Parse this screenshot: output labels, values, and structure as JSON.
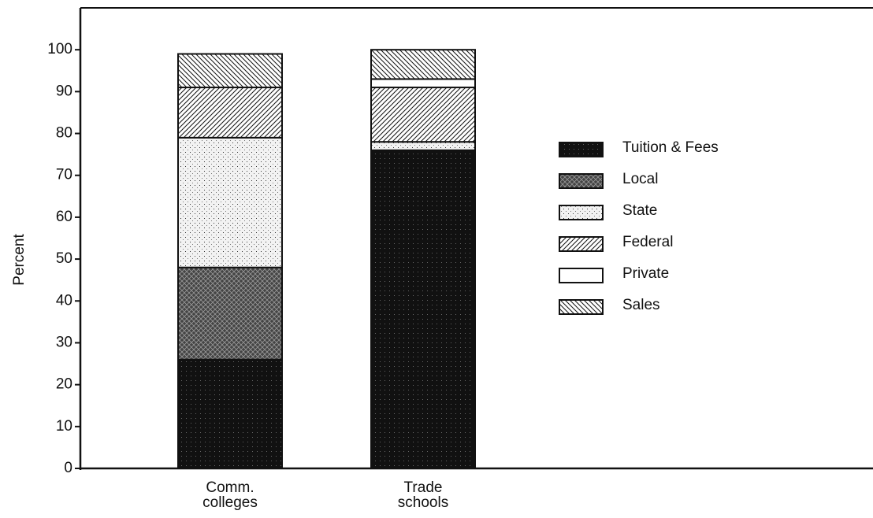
{
  "chart_data": {
    "type": "stacked_bar",
    "y_label": "Percent",
    "categories": [
      "Comm. colleges",
      "Trade schools"
    ],
    "series": [
      {
        "name": "Tuition & Fees",
        "color": "#111111",
        "hatch": "speckle",
        "values": [
          26,
          76
        ]
      },
      {
        "name": "Local",
        "color": "#444444",
        "hatch": "cross",
        "values": [
          22,
          0
        ]
      },
      {
        "name": "State",
        "color": "#f2f2f2",
        "hatch": "dots",
        "values": [
          31,
          2
        ]
      },
      {
        "name": "Federal",
        "color": "#ffffff",
        "hatch": "forward",
        "values": [
          12,
          13
        ]
      },
      {
        "name": "Private",
        "color": "#ffffff",
        "hatch": "none",
        "values": [
          0,
          2
        ]
      },
      {
        "name": "Sales",
        "color": "#ffffff",
        "hatch": "back",
        "values": [
          8,
          7
        ]
      }
    ],
    "ylim": [
      0,
      110
    ],
    "yticks": [
      0,
      10,
      20,
      30,
      40,
      50,
      60,
      70,
      80,
      90,
      100
    ],
    "grid": false
  }
}
